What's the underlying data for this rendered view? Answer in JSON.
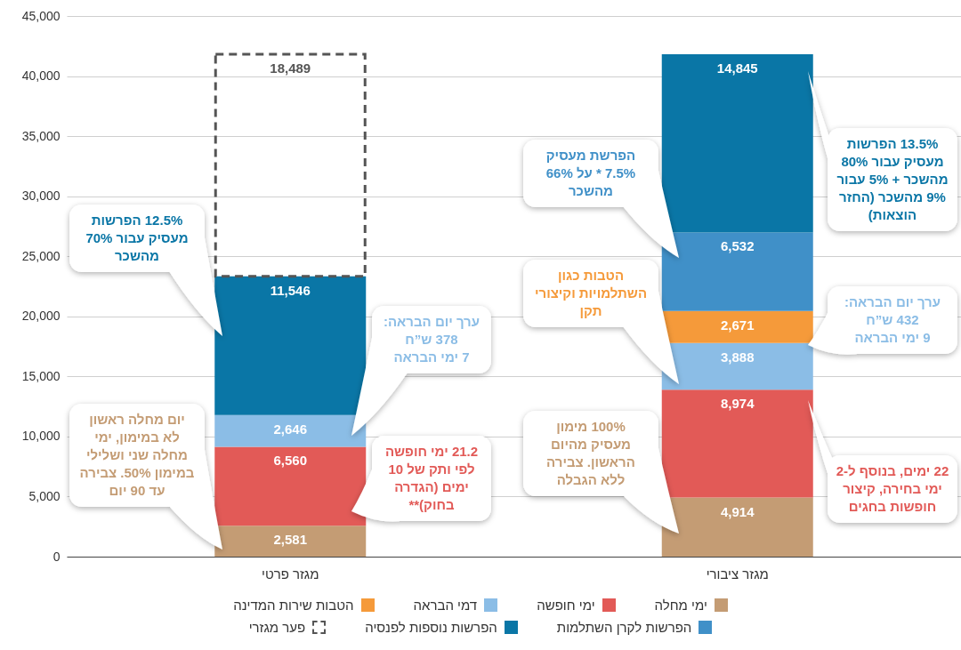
{
  "chart_data": {
    "type": "bar",
    "stacked": true,
    "categories": [
      "מגזר פרטי",
      "מגזר ציבורי"
    ],
    "series": [
      {
        "name": "ימי מחלה",
        "color": "#c49c74",
        "values": [
          2581,
          4914
        ],
        "value_labels": [
          "2,581",
          "4,914"
        ]
      },
      {
        "name": "ימי חופשה",
        "color": "#e25a57",
        "values": [
          6560,
          8974
        ],
        "value_labels": [
          "6,560",
          "8,974"
        ]
      },
      {
        "name": "דמי הבראה",
        "color": "#8bbde6",
        "values": [
          2646,
          3888
        ],
        "value_labels": [
          "2,646",
          "3,888"
        ]
      },
      {
        "name": "הטבות שירות המדינה",
        "color": "#f59a3a",
        "values": [
          null,
          2671
        ],
        "value_labels": [
          null,
          "2,671"
        ]
      },
      {
        "name": "הפרשות לקרן השתלמות",
        "color": "#4090c8",
        "values": [
          null,
          6532
        ],
        "value_labels": [
          null,
          "6,532"
        ]
      },
      {
        "name": "הפרשות נוספות לפנסיה",
        "color": "#0a76a6",
        "values": [
          11546,
          14845
        ],
        "value_labels": [
          "11,546",
          "14,845"
        ]
      },
      {
        "name": "פער מגזרי",
        "color": "#555555",
        "line_style": "dashed",
        "values": [
          18489,
          null
        ],
        "value_labels": [
          "18,489",
          null
        ]
      }
    ],
    "ylim": [
      0,
      45000
    ],
    "yticks": [
      0,
      {
        "value": 5000,
        "label": "5,000"
      },
      {
        "value": 10000,
        "label": "10,000"
      },
      {
        "value": 15000,
        "label": "15,000"
      },
      {
        "value": 20000,
        "label": "20,000"
      },
      {
        "value": 25000,
        "label": "25,000"
      },
      {
        "value": 30000,
        "label": "30,000"
      },
      {
        "value": 35000,
        "label": "35,000"
      },
      {
        "value": 40000,
        "label": "40,000"
      },
      {
        "value": 45000,
        "label": "45,000"
      }
    ],
    "grid": "y",
    "legend": "bottom",
    "annotations": [
      "12.5% הפרשות\nמעסיק עבור 70%\nמהשכר",
      "ערך יום הבראה:\n378 ש”ח\n7 ימי הבראה",
      "21.2 ימי חופשה\nלפי ותק של 10\nימים (הגדרה\nבחוק)**",
      "יום מחלה ראשון\nלא במימון, ימי\nמחלה שני ושלילי\nבמימון 50%. צבירה\nעד 90 יום",
      "הפרשת מעסיק\n7.5% * על 66%\nמהשכר",
      "הטבות כגון\nהשתלמויות וקיצורי\nתקן",
      "100% מימון\nמעסיק מהיום\nהראשון. צבירה\nללא הגבלה",
      "13.5% הפרשות\nמעסיק עבור 80%\nמהשכר + 5% עבור\n9% מהשכר (החזר\nהוצאות)",
      "ערך יום הבראה:\n432 ש”ח\n9 ימי הבראה",
      "22 ימים, בנוסף ל-2\nימי בחירה, קיצור\nחופשות בחגים"
    ]
  }
}
